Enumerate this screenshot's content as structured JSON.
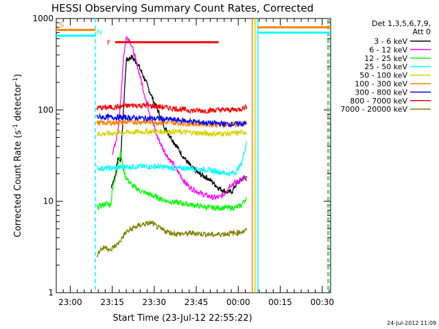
{
  "chart_data": {
    "type": "line",
    "title": "HESSI Observing Summary Count Rates, Corrected",
    "xlabel": "Start Time (23-Jul-12 22:55:22)",
    "ylabel_main": "Corrected Count Rate (s",
    "ylabel_sup1": "-1",
    "ylabel_mid": " detector",
    "ylabel_sup2": "-1",
    "ylabel_end": ")",
    "y_scale": "log",
    "ylim": [
      1,
      1000
    ],
    "xlim_minutes_after_2255": [
      0,
      98
    ],
    "x_ticks": [
      {
        "label": "23:00",
        "minutes": 5
      },
      {
        "label": "23:15",
        "minutes": 20
      },
      {
        "label": "23:30",
        "minutes": 35
      },
      {
        "label": "23:45",
        "minutes": 50
      },
      {
        "label": "00:00",
        "minutes": 65
      },
      {
        "label": "00:15",
        "minutes": 80
      },
      {
        "label": "00:30",
        "minutes": 95
      }
    ],
    "y_ticks": [
      {
        "label": "1",
        "value": 1
      },
      {
        "label": "10",
        "value": 10
      },
      {
        "label": "100",
        "value": 100
      },
      {
        "label": "1000",
        "value": 1000
      }
    ],
    "legend_header": [
      "Det 1,3,5,6,7,9,",
      "Att 0"
    ],
    "legend_position": "right",
    "series": [
      {
        "name": "3 - 6 keV",
        "color": "#000000",
        "points": [
          [
            19.7,
            14
          ],
          [
            20,
            16
          ],
          [
            21,
            18
          ],
          [
            22,
            30
          ],
          [
            23,
            28
          ],
          [
            25,
            350
          ],
          [
            27,
            380
          ],
          [
            29,
            320
          ],
          [
            31,
            240
          ],
          [
            33,
            170
          ],
          [
            35,
            120
          ],
          [
            37,
            88
          ],
          [
            39,
            62
          ],
          [
            41,
            50
          ],
          [
            43,
            40
          ],
          [
            45,
            32
          ],
          [
            48,
            24
          ],
          [
            51,
            20
          ],
          [
            54,
            18
          ],
          [
            56,
            16
          ],
          [
            58,
            14
          ],
          [
            60,
            13
          ],
          [
            62,
            12.5
          ],
          [
            63,
            13
          ],
          [
            64,
            15
          ],
          [
            66,
            17
          ],
          [
            67,
            18
          ],
          [
            68,
            17
          ]
        ]
      },
      {
        "name": "6 - 12 keV",
        "color": "#ff00ff",
        "points": [
          [
            20,
            34
          ],
          [
            21,
            40
          ],
          [
            22,
            60
          ],
          [
            23,
            120
          ],
          [
            24,
            380
          ],
          [
            25,
            620
          ],
          [
            26,
            600
          ],
          [
            27,
            500
          ],
          [
            28,
            390
          ],
          [
            30,
            230
          ],
          [
            32,
            130
          ],
          [
            34,
            80
          ],
          [
            36,
            52
          ],
          [
            38,
            38
          ],
          [
            40,
            30
          ],
          [
            42,
            25
          ],
          [
            44,
            20
          ],
          [
            46,
            16
          ],
          [
            48,
            14
          ],
          [
            50,
            13
          ],
          [
            52,
            12
          ],
          [
            54,
            11.5
          ],
          [
            56,
            11
          ],
          [
            58,
            11
          ],
          [
            60,
            12
          ],
          [
            62,
            15
          ],
          [
            64,
            16
          ],
          [
            66,
            17
          ],
          [
            68,
            18
          ]
        ]
      },
      {
        "name": "12 - 25 keV",
        "color": "#00ff00",
        "points": [
          [
            14.5,
            8.5
          ],
          [
            16,
            9
          ],
          [
            18,
            9.5
          ],
          [
            19.5,
            9
          ],
          [
            20,
            14
          ],
          [
            21,
            17
          ],
          [
            22,
            25
          ],
          [
            23,
            35
          ],
          [
            24,
            22
          ],
          [
            25,
            18
          ],
          [
            27,
            15
          ],
          [
            30,
            13
          ],
          [
            33,
            12
          ],
          [
            36,
            11
          ],
          [
            40,
            10
          ],
          [
            45,
            9.5
          ],
          [
            50,
            9
          ],
          [
            55,
            8.5
          ],
          [
            60,
            8.5
          ],
          [
            64,
            8.5
          ],
          [
            66,
            9
          ],
          [
            68,
            11
          ]
        ]
      },
      {
        "name": "25 - 50 keV",
        "color": "#00ffff",
        "points": [
          [
            14.5,
            23
          ],
          [
            18,
            23
          ],
          [
            21,
            23
          ],
          [
            24,
            24
          ],
          [
            30,
            24
          ],
          [
            36,
            24
          ],
          [
            42,
            23
          ],
          [
            48,
            23
          ],
          [
            54,
            22
          ],
          [
            58,
            21
          ],
          [
            62,
            20
          ],
          [
            64,
            21
          ],
          [
            66,
            25
          ],
          [
            67,
            33
          ],
          [
            68,
            45
          ]
        ]
      },
      {
        "name": "50 - 100 keV",
        "color": "#d4d400",
        "points": [
          [
            14.5,
            54
          ],
          [
            18,
            55
          ],
          [
            22,
            56
          ],
          [
            27,
            57
          ],
          [
            32,
            58
          ],
          [
            37,
            58
          ],
          [
            42,
            58
          ],
          [
            46,
            57
          ],
          [
            50,
            56
          ],
          [
            54,
            55
          ],
          [
            58,
            55
          ],
          [
            62,
            55
          ],
          [
            65,
            56
          ],
          [
            68,
            58
          ]
        ]
      },
      {
        "name": "100 - 300 keV",
        "color": "#ff8000",
        "points": [
          [
            14.5,
            72
          ],
          [
            18,
            72
          ],
          [
            22,
            73
          ],
          [
            27,
            74
          ],
          [
            32,
            74
          ],
          [
            37,
            73
          ],
          [
            42,
            72
          ],
          [
            46,
            71
          ],
          [
            50,
            70
          ],
          [
            54,
            70
          ],
          [
            58,
            69
          ],
          [
            62,
            69
          ],
          [
            65,
            70
          ],
          [
            68,
            72
          ]
        ]
      },
      {
        "name": "300 - 800 keV",
        "color": "#0000ff",
        "points": [
          [
            14.5,
            84
          ],
          [
            18,
            83
          ],
          [
            22,
            83
          ],
          [
            27,
            82
          ],
          [
            32,
            81
          ],
          [
            37,
            80
          ],
          [
            42,
            78
          ],
          [
            46,
            76
          ],
          [
            50,
            74
          ],
          [
            54,
            72
          ],
          [
            58,
            71
          ],
          [
            62,
            70
          ],
          [
            65,
            70
          ],
          [
            68,
            71
          ]
        ]
      },
      {
        "name": "800 - 7000 keV",
        "color": "#ff0000",
        "points": [
          [
            14.5,
            105
          ],
          [
            18,
            106
          ],
          [
            22,
            108
          ],
          [
            27,
            112
          ],
          [
            32,
            112
          ],
          [
            37,
            108
          ],
          [
            42,
            104
          ],
          [
            46,
            100
          ],
          [
            50,
            98
          ],
          [
            54,
            98
          ],
          [
            58,
            100
          ],
          [
            62,
            100
          ],
          [
            65,
            101
          ],
          [
            68,
            108
          ]
        ]
      },
      {
        "name": "7000 - 20000 keV",
        "color": "#808000",
        "points": [
          [
            14.5,
            2.6
          ],
          [
            16,
            3.0
          ],
          [
            18,
            3.2
          ],
          [
            19.5,
            2.8
          ],
          [
            20,
            3.1
          ],
          [
            22,
            3.4
          ],
          [
            25,
            4.6
          ],
          [
            28,
            5.2
          ],
          [
            31,
            5.6
          ],
          [
            34,
            5.8
          ],
          [
            37,
            5.0
          ],
          [
            40,
            4.6
          ],
          [
            43,
            4.4
          ],
          [
            46,
            4.4
          ],
          [
            49,
            4.5
          ],
          [
            52,
            4.4
          ],
          [
            56,
            4.3
          ],
          [
            60,
            4.4
          ],
          [
            64,
            4.5
          ],
          [
            68,
            4.8
          ]
        ]
      }
    ],
    "annotations": {
      "S": {
        "label": "S",
        "color": "#ff8000"
      },
      "N": {
        "label": "N",
        "color": "#00ffff"
      },
      "F": {
        "label": "F",
        "color": "#ff0000"
      }
    },
    "state_bars": [
      {
        "label_ref": "S",
        "color": "#ff8000",
        "x": [
          0,
          14
        ],
        "y": 750
      },
      {
        "label_ref": "N",
        "color": "#00ffff",
        "x": [
          0,
          14
        ],
        "y": 650
      },
      {
        "label_ref": "F",
        "color": "#ff0000",
        "x": [
          21,
          58
        ],
        "y": 550
      },
      {
        "color": "#ff8000",
        "x": [
          72,
          98
        ],
        "y": 800
      },
      {
        "color": "#00ffff",
        "x": [
          72,
          98
        ],
        "y": 700
      }
    ],
    "vertical_markers": [
      {
        "color": "#00ffff",
        "x": 14,
        "style": "dashed"
      },
      {
        "color": "#ff8000",
        "x": 70,
        "style": "solid"
      },
      {
        "color": "#d4d400",
        "x": 71,
        "style": "solid"
      },
      {
        "color": "#00ffff",
        "x": 72,
        "style": "solid"
      },
      {
        "color": "#ff8000",
        "x": 97,
        "style": "dashed"
      },
      {
        "color": "#00ffff",
        "x": 97.4,
        "style": "dashed"
      }
    ]
  },
  "footer": {
    "timestamp": "24-Jul-2012 11:09"
  }
}
